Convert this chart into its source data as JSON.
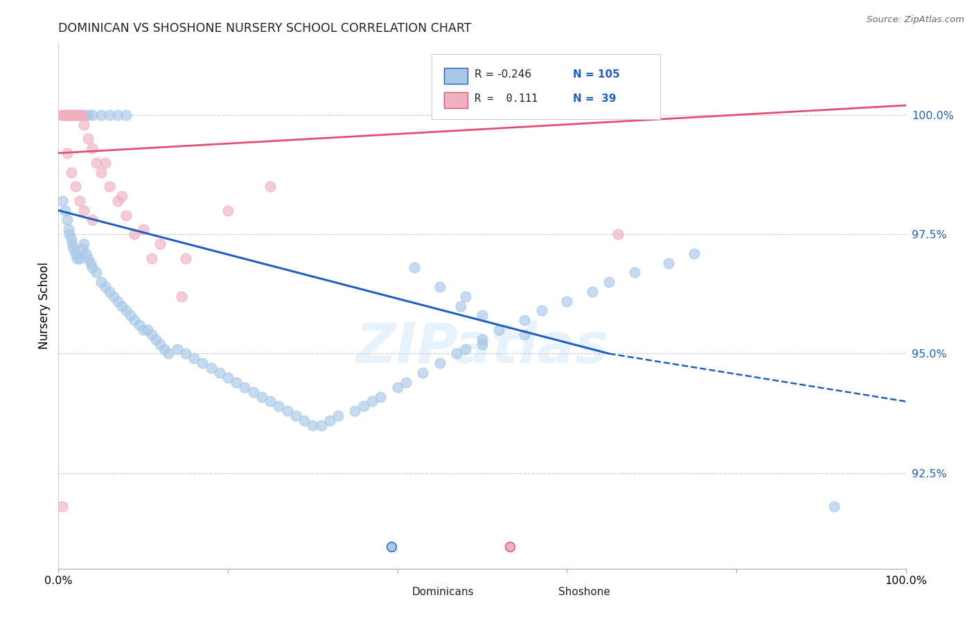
{
  "title": "DOMINICAN VS SHOSHONE NURSERY SCHOOL CORRELATION CHART",
  "source": "Source: ZipAtlas.com",
  "ylabel": "Nursery School",
  "yticks": [
    92.5,
    95.0,
    97.5,
    100.0
  ],
  "ytick_labels": [
    "92.5%",
    "95.0%",
    "97.5%",
    "100.0%"
  ],
  "xlim": [
    0.0,
    100.0
  ],
  "ylim": [
    90.5,
    101.5
  ],
  "blue_color": "#a8c8e8",
  "pink_color": "#f0b0c0",
  "blue_line_color": "#2060c0",
  "pink_line_color": "#e05070",
  "watermark": "ZIPatlas",
  "blue_line_x0": 0.0,
  "blue_line_y0": 98.0,
  "blue_line_x1": 65.0,
  "blue_line_y1": 95.0,
  "blue_line_x2": 100.0,
  "blue_line_y2": 94.0,
  "pink_line_x0": 0.0,
  "pink_line_y0": 99.2,
  "pink_line_x1": 100.0,
  "pink_line_y1": 100.2,
  "blue_scatter_x": [
    0.5,
    0.8,
    1.0,
    1.2,
    1.3,
    1.5,
    1.6,
    1.8,
    2.0,
    2.2,
    2.5,
    2.8,
    3.0,
    3.2,
    3.5,
    3.8,
    4.0,
    4.5,
    5.0,
    5.5,
    6.0,
    6.5,
    7.0,
    7.5,
    8.0,
    8.5,
    9.0,
    9.5,
    10.0,
    10.5,
    11.0,
    11.5,
    12.0,
    12.5,
    13.0,
    14.0,
    15.0,
    16.0,
    17.0,
    18.0,
    19.0,
    20.0,
    21.0,
    22.0,
    23.0,
    24.0,
    25.0,
    26.0,
    27.0,
    28.0,
    29.0,
    30.0,
    31.0,
    32.0,
    33.0,
    35.0,
    36.0,
    37.0,
    38.0,
    40.0,
    41.0,
    43.0,
    45.0,
    47.0,
    48.0,
    50.0,
    52.0,
    55.0,
    57.0,
    60.0,
    63.0,
    65.0,
    68.0,
    72.0,
    75.0,
    48.0,
    50.0,
    47.5,
    45.0,
    42.0,
    1.0,
    1.5,
    2.0,
    2.5,
    3.0,
    3.5,
    4.0,
    5.0,
    6.0,
    7.0,
    8.0,
    50.0,
    55.0,
    91.5
  ],
  "blue_scatter_y": [
    98.2,
    98.0,
    97.8,
    97.6,
    97.5,
    97.4,
    97.3,
    97.2,
    97.1,
    97.0,
    97.0,
    97.2,
    97.3,
    97.1,
    97.0,
    96.9,
    96.8,
    96.7,
    96.5,
    96.4,
    96.3,
    96.2,
    96.1,
    96.0,
    95.9,
    95.8,
    95.7,
    95.6,
    95.5,
    95.5,
    95.4,
    95.3,
    95.2,
    95.1,
    95.0,
    95.1,
    95.0,
    94.9,
    94.8,
    94.7,
    94.6,
    94.5,
    94.4,
    94.3,
    94.2,
    94.1,
    94.0,
    93.9,
    93.8,
    93.7,
    93.6,
    93.5,
    93.5,
    93.6,
    93.7,
    93.8,
    93.9,
    94.0,
    94.1,
    94.3,
    94.4,
    94.6,
    94.8,
    95.0,
    95.1,
    95.3,
    95.5,
    95.7,
    95.9,
    96.1,
    96.3,
    96.5,
    96.7,
    96.9,
    97.1,
    96.2,
    95.8,
    96.0,
    96.4,
    96.8,
    100.0,
    100.0,
    100.0,
    100.0,
    100.0,
    100.0,
    100.0,
    100.0,
    100.0,
    100.0,
    100.0,
    95.2,
    95.4,
    91.8
  ],
  "pink_scatter_x": [
    0.3,
    0.5,
    0.7,
    0.8,
    1.0,
    1.2,
    1.4,
    1.5,
    1.8,
    2.0,
    2.2,
    2.5,
    2.8,
    3.0,
    3.5,
    4.0,
    4.5,
    5.0,
    6.0,
    7.0,
    8.0,
    10.0,
    12.0,
    15.0,
    20.0,
    25.0,
    66.0,
    0.5,
    1.0,
    1.5,
    2.0,
    2.5,
    3.0,
    4.0,
    5.5,
    7.5,
    9.0,
    11.0,
    14.5
  ],
  "pink_scatter_y": [
    100.0,
    100.0,
    100.0,
    100.0,
    100.0,
    100.0,
    100.0,
    100.0,
    100.0,
    100.0,
    100.0,
    100.0,
    100.0,
    99.8,
    99.5,
    99.3,
    99.0,
    98.8,
    98.5,
    98.2,
    97.9,
    97.6,
    97.3,
    97.0,
    98.0,
    98.5,
    97.5,
    91.8,
    99.2,
    98.8,
    98.5,
    98.2,
    98.0,
    97.8,
    99.0,
    98.3,
    97.5,
    97.0,
    96.2
  ]
}
